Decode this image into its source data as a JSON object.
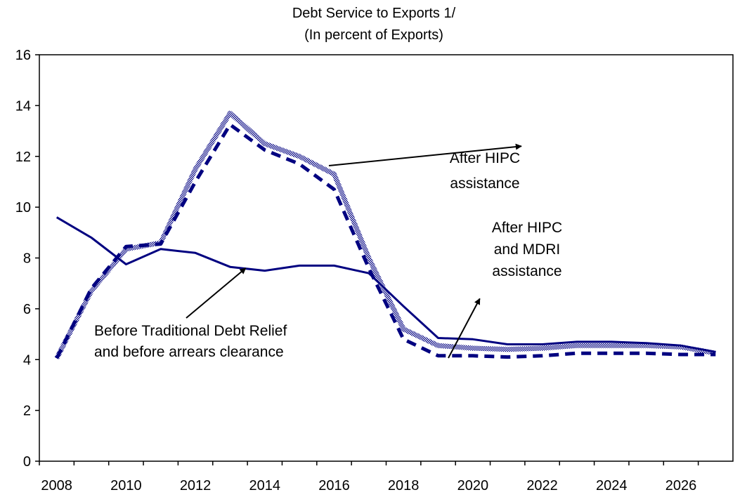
{
  "chart_data": {
    "type": "line",
    "title": "Debt Service to Exports 1/",
    "subtitle": "(In percent of Exports)",
    "xlabel": "",
    "ylabel": "",
    "xlim": [
      2007.5,
      2027.5
    ],
    "ylim": [
      0,
      16
    ],
    "grid": false,
    "x": [
      2008,
      2009,
      2010,
      2011,
      2012,
      2013,
      2014,
      2015,
      2016,
      2017,
      2018,
      2019,
      2020,
      2021,
      2022,
      2023,
      2024,
      2025,
      2026,
      2027
    ],
    "x_tick_labels": [
      "2008",
      "2010",
      "2012",
      "2014",
      "2016",
      "2018",
      "2020",
      "2022",
      "2024",
      "2026"
    ],
    "y_tick_labels": [
      "0",
      "2",
      "4",
      "6",
      "8",
      "10",
      "12",
      "14",
      "16"
    ],
    "series": [
      {
        "key": "before",
        "style": "solid",
        "color": "#000080",
        "values": [
          9.6,
          8.8,
          7.75,
          8.35,
          8.2,
          7.65,
          7.5,
          7.7,
          7.7,
          7.4,
          6.1,
          4.85,
          4.8,
          4.6,
          4.6,
          4.7,
          4.7,
          4.65,
          4.55,
          4.3
        ]
      },
      {
        "key": "after_hipc",
        "style": "hatched",
        "color": "#000080",
        "values": [
          4.05,
          6.7,
          8.35,
          8.6,
          11.5,
          13.7,
          12.5,
          12.0,
          11.3,
          8.0,
          5.2,
          4.55,
          4.45,
          4.4,
          4.45,
          4.55,
          4.55,
          4.55,
          4.5,
          4.25
        ]
      },
      {
        "key": "after_hipc_mdri",
        "style": "dashed",
        "color": "#000080",
        "values": [
          4.05,
          6.8,
          8.45,
          8.55,
          11.0,
          13.25,
          12.25,
          11.7,
          10.7,
          7.6,
          4.8,
          4.15,
          4.15,
          4.1,
          4.15,
          4.25,
          4.25,
          4.25,
          4.2,
          4.2
        ]
      }
    ],
    "annotations": [
      {
        "key": "before",
        "lines": [
          "Before Traditional Debt Relief",
          "and before arrears clearance"
        ]
      },
      {
        "key": "after_hipc",
        "lines": [
          "After HIPC",
          "assistance"
        ]
      },
      {
        "key": "after_hipc_mdri",
        "lines": [
          "After HIPC",
          "and MDRI",
          "assistance"
        ]
      }
    ]
  }
}
